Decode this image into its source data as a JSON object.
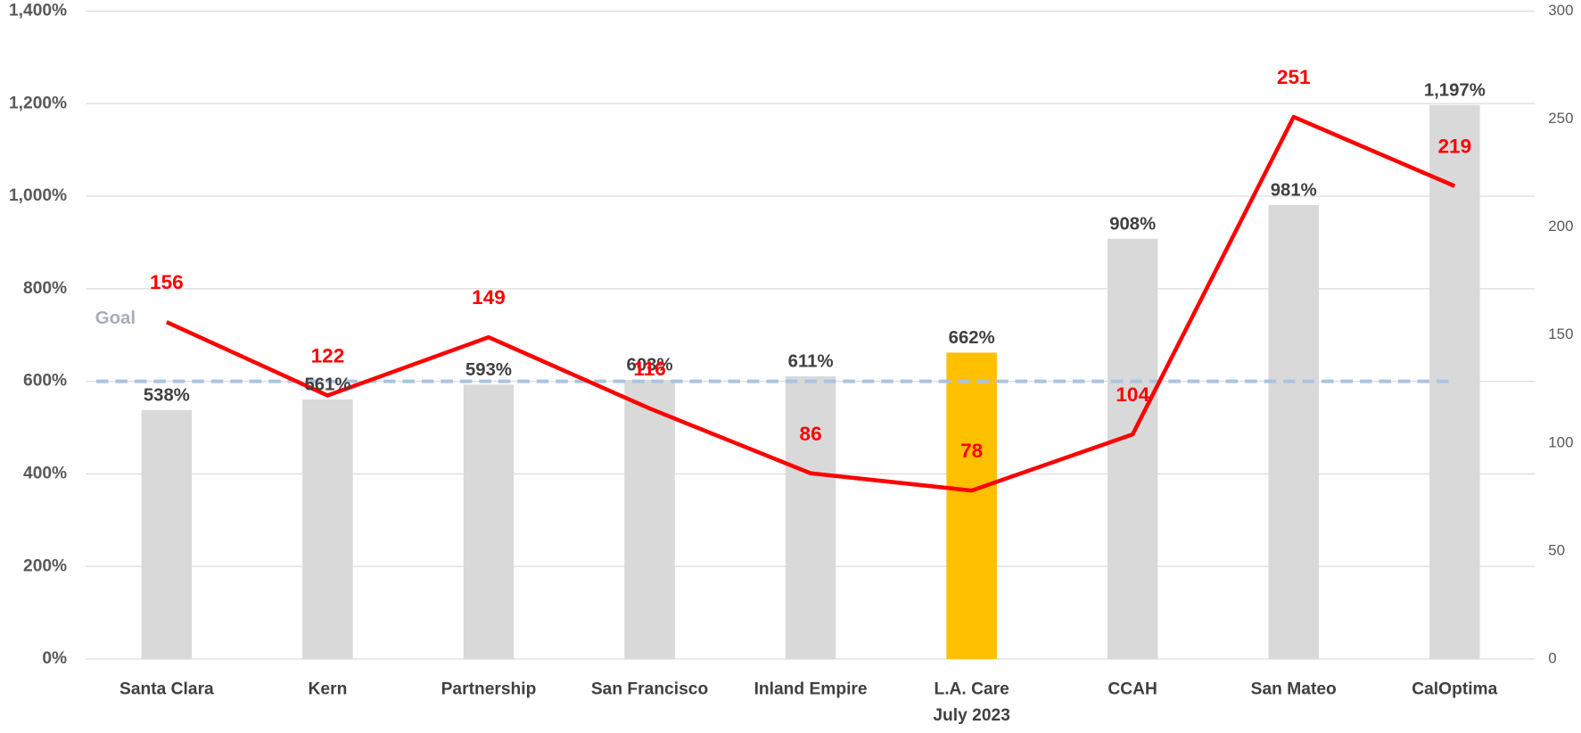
{
  "chart_data": {
    "type": "bar",
    "categories": [
      "Santa Clara",
      "Kern",
      "Partnership",
      "San Francisco",
      "Inland Empire",
      "L.A. Care\nJuly 2023",
      "CCAH",
      "San Mateo",
      "CalOptima"
    ],
    "series": [
      {
        "type": "bar",
        "values": [
          538,
          561,
          593,
          603,
          611,
          662,
          908,
          981,
          1197
        ],
        "value_labels": [
          "538%",
          "561%",
          "593%",
          "603%",
          "611%",
          "662%",
          "908%",
          "981%",
          "1,197%"
        ],
        "colors": [
          "#d9d9d9",
          "#d9d9d9",
          "#d9d9d9",
          "#d9d9d9",
          "#d9d9d9",
          "#ffc000",
          "#d9d9d9",
          "#d9d9d9",
          "#d9d9d9"
        ]
      },
      {
        "type": "line",
        "axis": "y2",
        "color": "#ff0000",
        "values": [
          156,
          122,
          149,
          116,
          86,
          78,
          104,
          251,
          219
        ]
      }
    ],
    "goal": {
      "value": 600,
      "label": "Goal",
      "color": "#a9c4e0"
    },
    "ylim": [
      0,
      1400
    ],
    "yticks": [
      {
        "value": 0,
        "label": "0%"
      },
      {
        "value": 200,
        "label": "200%"
      },
      {
        "value": 400,
        "label": "400%"
      },
      {
        "value": 600,
        "label": "600%"
      },
      {
        "value": 800,
        "label": "800%"
      },
      {
        "value": 1000,
        "label": "1,000%"
      },
      {
        "value": 1200,
        "label": "1,200%"
      },
      {
        "value": 1400,
        "label": "1,400%"
      }
    ],
    "y2lim": [
      0,
      300
    ],
    "y2ticks": [
      0,
      50,
      100,
      150,
      200,
      250,
      300
    ],
    "grid": true
  }
}
